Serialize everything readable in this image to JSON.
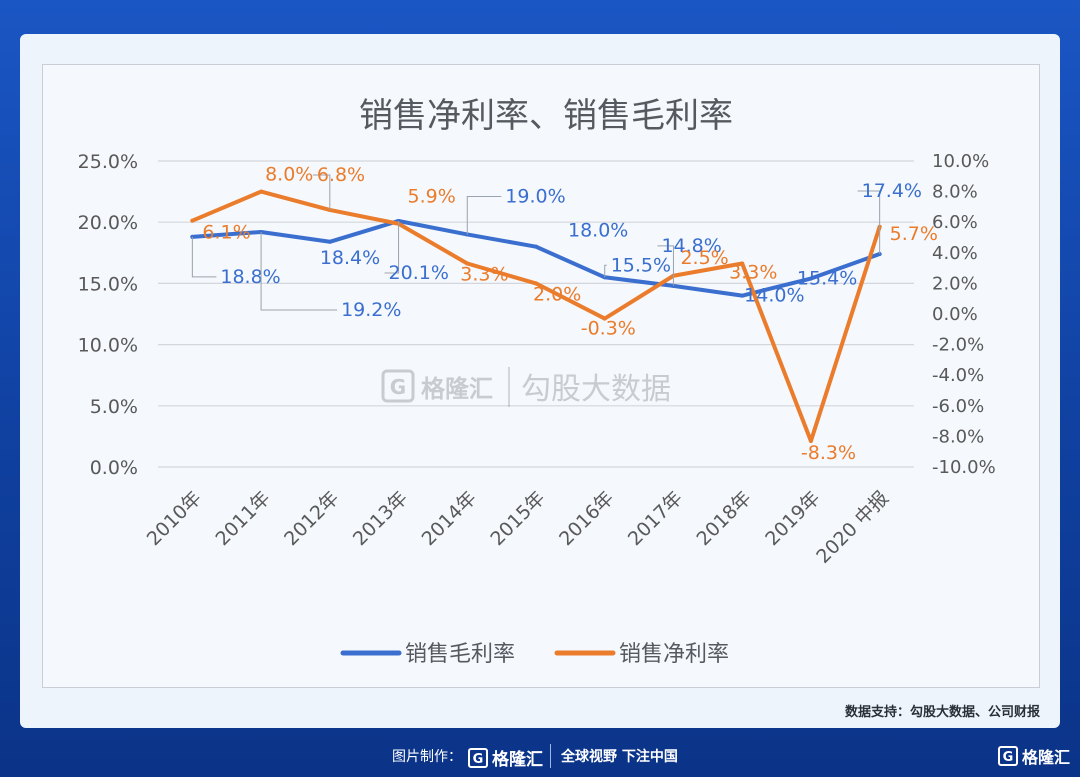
{
  "chart_data": {
    "type": "line",
    "title": "销售净利率、销售毛利率",
    "categories": [
      "2010年",
      "2011年",
      "2012年",
      "2013年",
      "2014年",
      "2015年",
      "2016年",
      "2017年",
      "2018年",
      "2019年",
      "2020 中报"
    ],
    "left_axis": {
      "min": 0,
      "max": 25,
      "ticks": [
        "0.0%",
        "5.0%",
        "10.0%",
        "15.0%",
        "20.0%",
        "25.0%"
      ]
    },
    "right_axis": {
      "min": -10,
      "max": 10,
      "ticks": [
        "-10.0%",
        "-8.0%",
        "-6.0%",
        "-4.0%",
        "-2.0%",
        "0.0%",
        "2.0%",
        "4.0%",
        "6.0%",
        "8.0%",
        "10.0%"
      ]
    },
    "grid": true,
    "legend_position": "bottom",
    "series": [
      {
        "name": "销售毛利率",
        "axis": "left",
        "color": "#3a6fcf",
        "values": [
          18.8,
          19.2,
          18.4,
          20.1,
          19.0,
          18.0,
          15.5,
          14.8,
          14.0,
          15.4,
          17.4
        ],
        "labels": [
          "18.8%",
          "19.2%",
          "18.4%",
          "20.1%",
          "19.0%",
          "18.0%",
          "15.5%",
          "14.8%",
          "14.0%",
          "15.4%",
          "17.4%"
        ]
      },
      {
        "name": "销售净利率",
        "axis": "right",
        "color": "#ea7c2c",
        "values": [
          6.1,
          8.0,
          6.8,
          5.9,
          3.3,
          2.0,
          -0.3,
          2.5,
          3.3,
          -8.3,
          5.7
        ],
        "labels": [
          "6.1%",
          "8.0%",
          "6.8%",
          "5.9%",
          "3.3%",
          "2.0%",
          "-0.3%",
          "2.5%",
          "3.3%",
          "-8.3%",
          "5.7%"
        ]
      }
    ]
  },
  "watermark": {
    "brand": "格隆汇",
    "tagline": "勾股大数据",
    "mark": "G"
  },
  "source_note": "数据支持：勾股大数据、公司财报",
  "footer": {
    "made_by": "图片制作：",
    "brand": "格隆汇",
    "logo_mark": "G",
    "slogan": "全球视野 下注中国",
    "corner_brand": "格隆汇"
  }
}
